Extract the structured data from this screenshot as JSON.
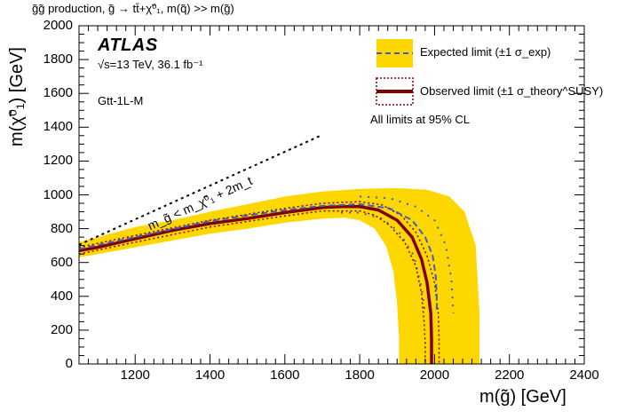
{
  "header": "g̃g̃  production, g̃ → tt̄+χ̃⁰₁, m(q̃) >> m(g̃)",
  "atlas_label": "ATLAS",
  "energy_label": "√s=13 TeV, 36.1 fb⁻¹",
  "signal_region": "Gtt-1L-M",
  "kinematic_label": "m_g̃ < m_χ̃⁰₁ + 2m_t",
  "legend": {
    "expected": "Expected limit (±1 σ_exp)",
    "observed": "Observed limit (±1 σ_theory^SUSY)",
    "note": "All limits at 95% CL"
  },
  "colors": {
    "band": "#ffd700",
    "expected": "#3a5fcd",
    "observed": "#800000",
    "diagonal": "#000000"
  },
  "chart_data": {
    "type": "line",
    "title": "",
    "xlabel": "m(g̃) [GeV]",
    "ylabel": "m(χ̃⁰₁) [GeV]",
    "xlim": [
      1050,
      2400
    ],
    "ylim": [
      0,
      2000
    ],
    "xticks": [
      1200,
      1400,
      1600,
      1800,
      2000,
      2200,
      2400
    ],
    "yticks": [
      0,
      200,
      400,
      600,
      800,
      1000,
      1200,
      1400,
      1600,
      1800,
      2000
    ],
    "legend_position": "top-right",
    "kinematic_limit": {
      "x": [
        1050,
        1700
      ],
      "y": [
        705,
        1355
      ]
    },
    "observed": {
      "x": [
        1050,
        1100,
        1200,
        1300,
        1400,
        1500,
        1600,
        1700,
        1750,
        1800,
        1850,
        1900,
        1940,
        1965,
        1980,
        1990,
        1992,
        1992
      ],
      "y": [
        670,
        690,
        740,
        790,
        830,
        860,
        895,
        925,
        930,
        930,
        910,
        850,
        750,
        620,
        480,
        300,
        150,
        0
      ]
    },
    "observed_theory_up": {
      "x": [
        1050,
        1200,
        1400,
        1600,
        1700,
        1800,
        1860,
        1910,
        1950,
        1980,
        2000,
        2010,
        2012,
        2012
      ],
      "y": [
        690,
        760,
        850,
        920,
        950,
        960,
        940,
        880,
        780,
        640,
        480,
        300,
        150,
        0
      ]
    },
    "observed_theory_down": {
      "x": [
        1050,
        1200,
        1400,
        1600,
        1700,
        1800,
        1840,
        1880,
        1920,
        1950,
        1965,
        1972,
        1975,
        1975
      ],
      "y": [
        650,
        720,
        810,
        875,
        905,
        905,
        880,
        820,
        720,
        580,
        420,
        250,
        120,
        0
      ]
    },
    "expected": {
      "x": [
        1050,
        1200,
        1400,
        1600,
        1700,
        1800,
        1880,
        1940,
        1975,
        1995,
        2003,
        2006,
        2006
      ],
      "y": [
        680,
        750,
        845,
        910,
        935,
        945,
        920,
        850,
        750,
        640,
        520,
        400,
        320
      ]
    },
    "expected_band": {
      "upper": {
        "x": [
          1050,
          1100,
          1200,
          1300,
          1400,
          1500,
          1600,
          1700,
          1800,
          1900,
          1980,
          2040,
          2080,
          2110,
          2120,
          2120
        ],
        "y": [
          720,
          750,
          810,
          850,
          900,
          945,
          990,
          1020,
          1035,
          1040,
          1030,
          990,
          900,
          700,
          300,
          0
        ]
      },
      "lower": {
        "x": [
          1050,
          1100,
          1200,
          1300,
          1400,
          1500,
          1600,
          1700,
          1760,
          1800,
          1840,
          1870,
          1890,
          1900,
          1905,
          1905
        ],
        "y": [
          630,
          650,
          690,
          730,
          770,
          800,
          835,
          860,
          865,
          850,
          800,
          700,
          550,
          350,
          150,
          0
        ]
      }
    },
    "expected_sigma_up_edge": {
      "x": [
        1800,
        1880,
        1950,
        2000,
        2030,
        2045,
        2050
      ],
      "y": [
        990,
        980,
        930,
        850,
        700,
        500,
        300
      ]
    },
    "expected_sigma_down_edge": {
      "x": [
        1750,
        1800,
        1860,
        1905,
        1945,
        1965,
        1975
      ],
      "y": [
        895,
        895,
        860,
        780,
        640,
        450,
        300
      ]
    }
  }
}
